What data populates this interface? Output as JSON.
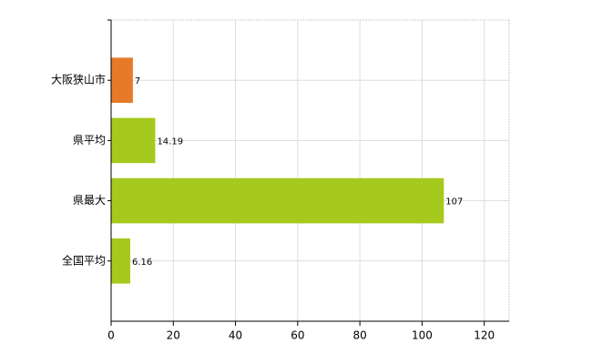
{
  "chart_data": {
    "type": "hbar",
    "categories": [
      "大阪狭山市",
      "県平均",
      "県最大",
      "全国平均"
    ],
    "values": [
      7,
      14.19,
      107,
      6.16
    ],
    "colors": [
      "#e67a28",
      "#a6c91e",
      "#a6c91e",
      "#a6c91e"
    ],
    "xlim": [
      0,
      128
    ],
    "xticks": [
      0,
      20,
      40,
      60,
      80,
      100,
      120
    ],
    "grid": true
  }
}
